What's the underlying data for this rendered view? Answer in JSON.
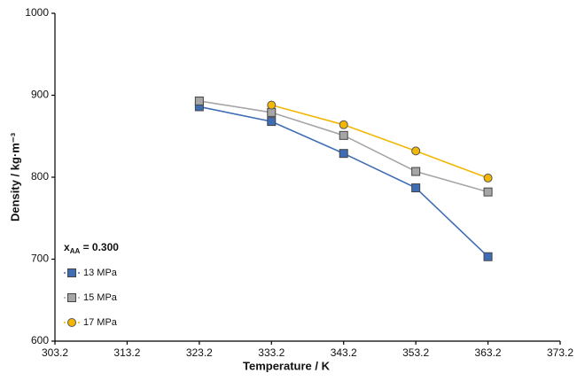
{
  "chart_data": {
    "type": "line",
    "xlabel": "Temperature / K",
    "ylabel": "Density / kg·m⁻³",
    "legend_title": {
      "base": "x",
      "sub": "AA",
      "rest": " = 0.300"
    },
    "x": [
      323.2,
      333.2,
      343.2,
      353.2,
      363.2
    ],
    "series": [
      {
        "name": "13 MPa",
        "color": "#3f6db5",
        "marker": "square",
        "values": [
          886,
          868,
          829,
          787,
          703
        ]
      },
      {
        "name": "15 MPa",
        "color": "#a6a6a6",
        "marker": "square",
        "values": [
          893,
          879,
          851,
          807,
          782
        ]
      },
      {
        "name": "17 MPa",
        "color": "#f2b705",
        "marker": "circle",
        "values": [
          null,
          888,
          864,
          832,
          799
        ]
      }
    ],
    "xlim": [
      303.2,
      373.2
    ],
    "xticks": [
      303.2,
      313.2,
      323.2,
      333.2,
      343.2,
      353.2,
      363.2,
      373.2
    ],
    "ylim": [
      600,
      1000
    ],
    "yticks": [
      600,
      700,
      800,
      900,
      1000
    ],
    "grid": false,
    "legend": "lower left"
  }
}
